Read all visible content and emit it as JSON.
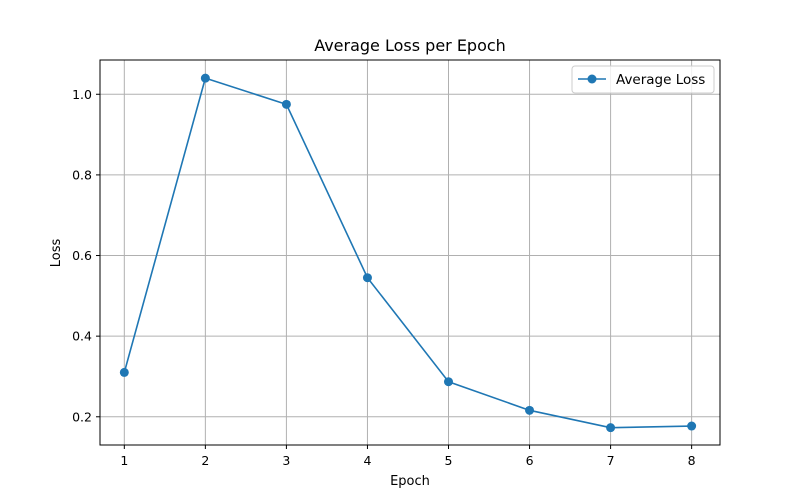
{
  "chart_data": {
    "type": "line",
    "title": "Average Loss per Epoch",
    "xlabel": "Epoch",
    "ylabel": "Loss",
    "x": [
      1,
      2,
      3,
      4,
      5,
      6,
      7,
      8
    ],
    "series": [
      {
        "name": "Average Loss",
        "color": "#1f77b4",
        "marker": "circle",
        "values": [
          0.31,
          1.04,
          0.975,
          0.545,
          0.287,
          0.216,
          0.173,
          0.177
        ]
      }
    ],
    "x_ticks": [
      "1",
      "2",
      "3",
      "4",
      "5",
      "6",
      "7",
      "8"
    ],
    "y_ticks": [
      "0.2",
      "0.4",
      "0.6",
      "0.8",
      "1.0"
    ],
    "xlim": [
      0.7,
      8.35
    ],
    "ylim": [
      0.13,
      1.085
    ],
    "grid": true,
    "legend_position": "top-right"
  }
}
